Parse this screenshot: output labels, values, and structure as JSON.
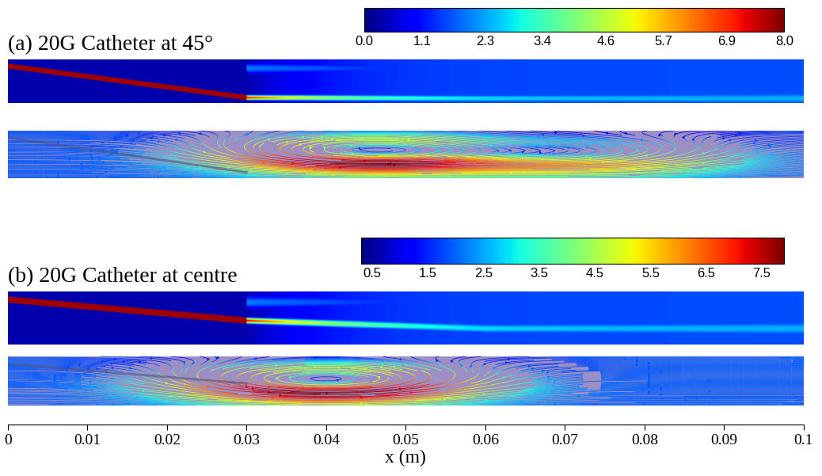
{
  "chart_data": {
    "type": "contour",
    "panels": [
      {
        "title": "(a) 20G Catheter at 45°",
        "catheter_tip_x": 0.03,
        "colorbar": {
          "range": [
            0.0,
            8.0
          ],
          "ticks": [
            0.0,
            1.1,
            2.3,
            3.4,
            4.6,
            5.7,
            6.9,
            8.0
          ]
        }
      },
      {
        "title": "(b) 20G Catheter at centre",
        "catheter_tip_x": 0.03,
        "colorbar": {
          "range": [
            0.3,
            7.9
          ],
          "ticks": [
            0.5,
            1.5,
            2.5,
            3.5,
            4.5,
            5.5,
            6.5,
            7.5
          ]
        }
      }
    ],
    "x_label": "x (m)",
    "xlim": [
      0,
      0.1
    ],
    "xticks": [
      0,
      0.01,
      0.02,
      0.03,
      0.04,
      0.05,
      0.06,
      0.07,
      0.08,
      0.09,
      0.1
    ]
  }
}
